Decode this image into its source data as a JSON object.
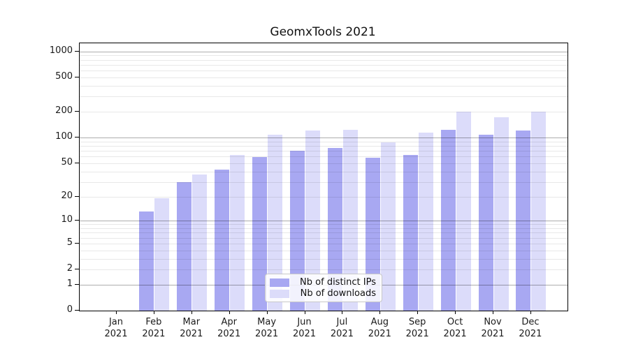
{
  "chart_data": {
    "type": "bar",
    "title": "GeomxTools 2021",
    "xlabel": "",
    "ylabel": "",
    "year": "2021",
    "categories": [
      "Jan",
      "Feb",
      "Mar",
      "Apr",
      "May",
      "Jun",
      "Jul",
      "Aug",
      "Sep",
      "Oct",
      "Nov",
      "Dec"
    ],
    "series": [
      {
        "id": "distinct-ips",
        "name": "Nb of distinct IPs",
        "color": "#a8a8f2",
        "values": [
          0,
          13,
          30,
          42,
          59,
          70,
          75,
          58,
          63,
          122,
          107,
          120
        ]
      },
      {
        "id": "downloads",
        "name": "Nb of downloads",
        "color": "#dcdcfa",
        "values": [
          0,
          19,
          37,
          62,
          107,
          121,
          123,
          88,
          115,
          200,
          173,
          199
        ]
      }
    ],
    "yscale": "pseudo-log (log1p)",
    "ylim": [
      0,
      1240
    ],
    "yticks": [
      0,
      1,
      2,
      5,
      10,
      20,
      50,
      100,
      200,
      500,
      1000
    ],
    "ytick_labels": [
      "0",
      "1",
      "2",
      "5",
      "10",
      "20",
      "50",
      "100",
      "200",
      "500",
      "1000"
    ],
    "gridlines": {
      "major": [
        1,
        10,
        100,
        1000
      ],
      "minor": [
        2,
        3,
        4,
        5,
        6,
        7,
        8,
        9,
        20,
        30,
        40,
        50,
        60,
        70,
        80,
        90,
        200,
        300,
        400,
        500,
        600,
        700,
        800,
        900
      ]
    },
    "grid": "on",
    "legend_position": "lower center inside plot",
    "style": {
      "grid_major": "rgba(0,0,0,0.32)",
      "grid_minor": "rgba(0,0,0,0.09)",
      "axis_color": "#000000",
      "text_color": "#1a1a1a",
      "legend_border": "#c8c8c8",
      "background": "#ffffff"
    }
  }
}
